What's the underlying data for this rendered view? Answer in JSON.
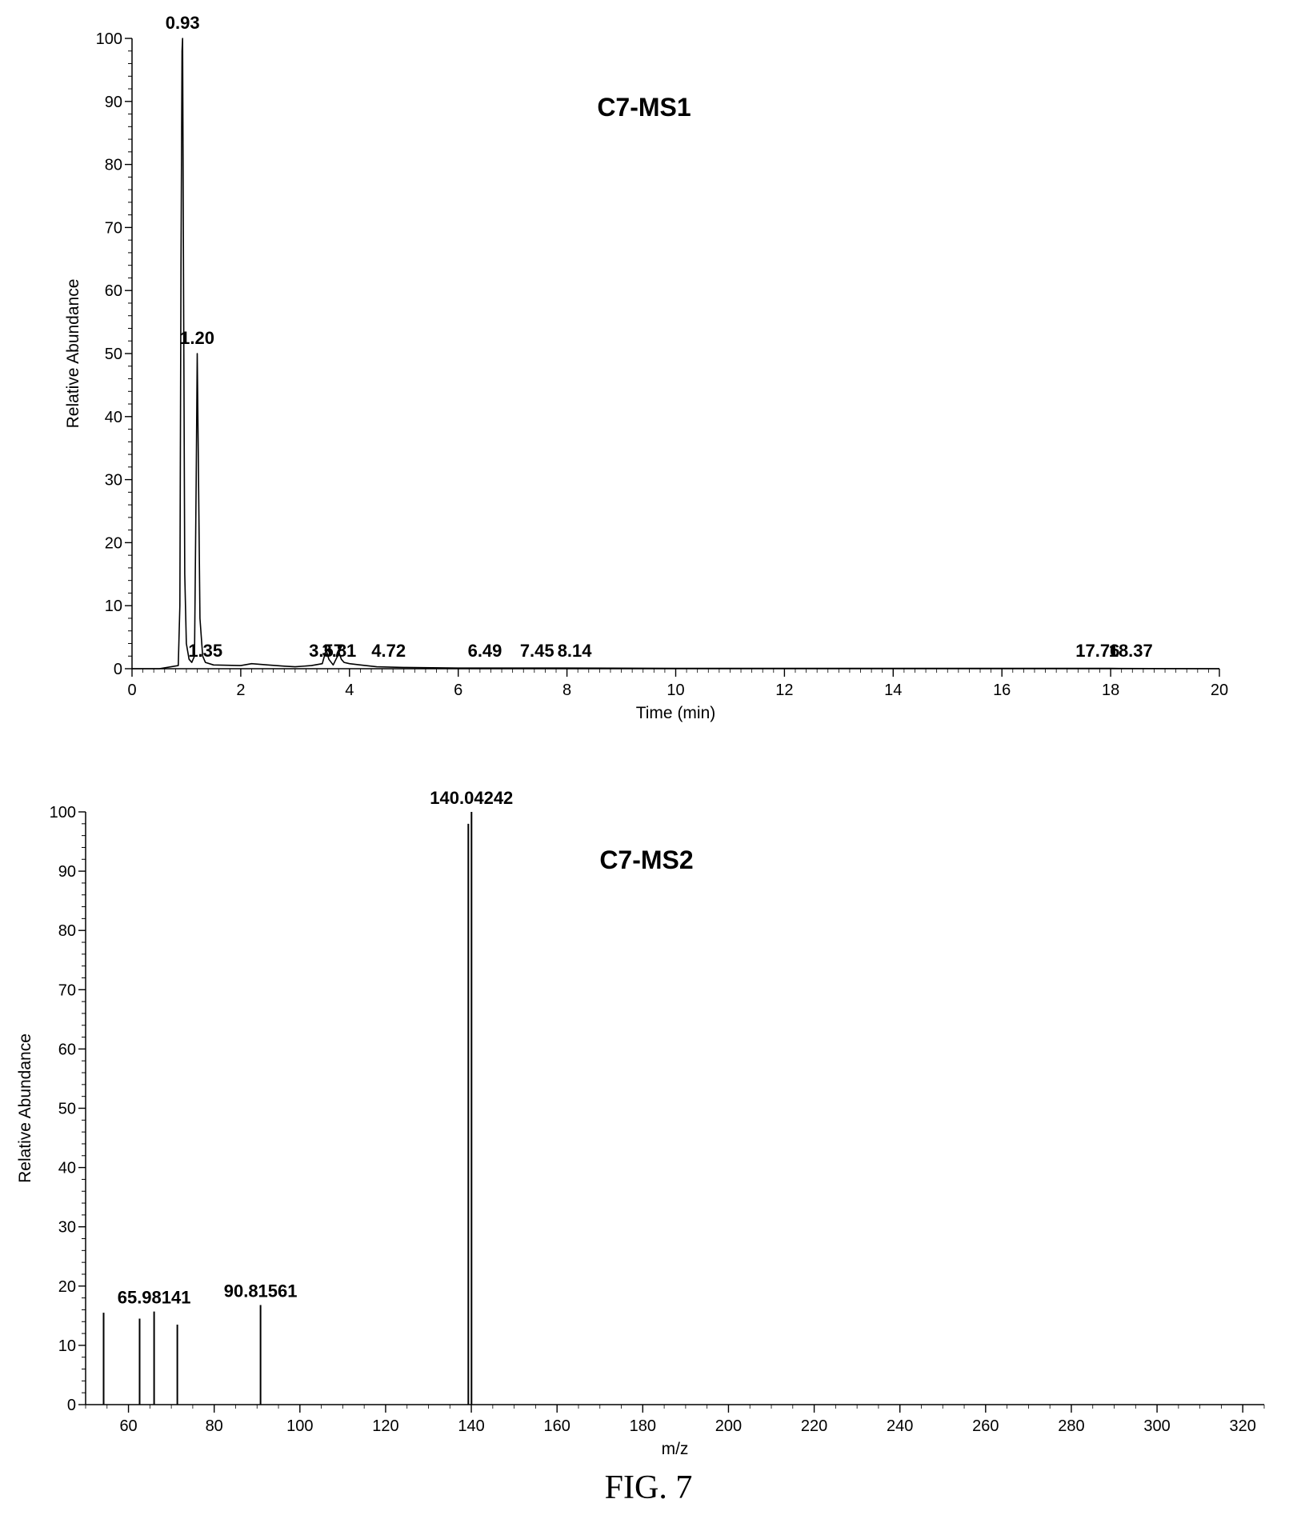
{
  "figure_caption": "FIG. 7",
  "chart_data": [
    {
      "type": "line",
      "title": "C7-MS1",
      "xlabel": "Time (min)",
      "ylabel": "Relative Abundance",
      "xlim": [
        0,
        20
      ],
      "ylim": [
        0,
        100
      ],
      "xticks": [
        0,
        2,
        4,
        6,
        8,
        10,
        12,
        14,
        16,
        18,
        20
      ],
      "yticks": [
        0,
        10,
        20,
        30,
        40,
        50,
        60,
        70,
        80,
        90,
        100
      ],
      "grid": false,
      "series": [
        {
          "x": [
            0,
            0.5,
            0.85,
            0.88,
            0.9,
            0.92,
            0.93,
            0.95,
            0.97,
            1.0,
            1.05,
            1.1,
            1.15,
            1.18,
            1.2,
            1.22,
            1.25,
            1.3,
            1.35,
            1.5,
            2.0,
            2.2,
            2.5,
            2.8,
            3.0,
            3.3,
            3.5,
            3.57,
            3.62,
            3.7,
            3.78,
            3.81,
            3.85,
            3.9,
            4.0,
            4.2,
            4.5,
            5.0,
            6.0,
            7.0,
            8.0,
            10.0,
            14.0,
            18.0,
            20.0
          ],
          "y": [
            0,
            0,
            0.5,
            10,
            64,
            98,
            100,
            55,
            15,
            4,
            1.5,
            1,
            2,
            30,
            50,
            33,
            8,
            2,
            1,
            0.6,
            0.5,
            0.8,
            0.6,
            0.4,
            0.3,
            0.5,
            0.8,
            3,
            1.5,
            0.6,
            2,
            2.5,
            1.5,
            1,
            0.8,
            0.6,
            0.3,
            0.2,
            0.1,
            0.1,
            0.1,
            0.05,
            0.05,
            0.05,
            0
          ]
        }
      ],
      "peak_labels": [
        {
          "x": 0.93,
          "y": 100,
          "label": "0.93"
        },
        {
          "x": 1.2,
          "y": 50,
          "label": "1.20"
        },
        {
          "x": 1.35,
          "y": 1,
          "label": "1.35"
        },
        {
          "x": 3.57,
          "y": 3,
          "label": "3.57"
        },
        {
          "x": 3.81,
          "y": 2.5,
          "label": "3.81"
        },
        {
          "x": 4.72,
          "y": 0.5,
          "label": "4.72"
        },
        {
          "x": 6.49,
          "y": 0.3,
          "label": "6.49"
        },
        {
          "x": 7.45,
          "y": 0.2,
          "label": "7.45"
        },
        {
          "x": 8.14,
          "y": 0.2,
          "label": "8.14"
        },
        {
          "x": 17.76,
          "y": 0.1,
          "label": "17.76"
        },
        {
          "x": 18.37,
          "y": 0.1,
          "label": "18.37"
        }
      ]
    },
    {
      "type": "bar",
      "title": "C7-MS2",
      "xlabel": "m/z",
      "ylabel": "Relative Abundance",
      "xlim": [
        50,
        325
      ],
      "ylim": [
        0,
        100
      ],
      "xticks": [
        60,
        80,
        100,
        120,
        140,
        160,
        180,
        200,
        220,
        240,
        260,
        280,
        300,
        320
      ],
      "yticks": [
        0,
        10,
        20,
        30,
        40,
        50,
        60,
        70,
        80,
        90,
        100
      ],
      "grid": false,
      "bars": [
        {
          "x": 54.2,
          "y": 15.5
        },
        {
          "x": 62.6,
          "y": 14.5
        },
        {
          "x": 65.98141,
          "y": 15.7,
          "label": "65.98141"
        },
        {
          "x": 71.4,
          "y": 13.5
        },
        {
          "x": 90.81561,
          "y": 16.8,
          "label": "90.81561"
        },
        {
          "x": 139.3,
          "y": 98
        },
        {
          "x": 140.04242,
          "y": 100,
          "label": "140.04242"
        }
      ]
    }
  ]
}
